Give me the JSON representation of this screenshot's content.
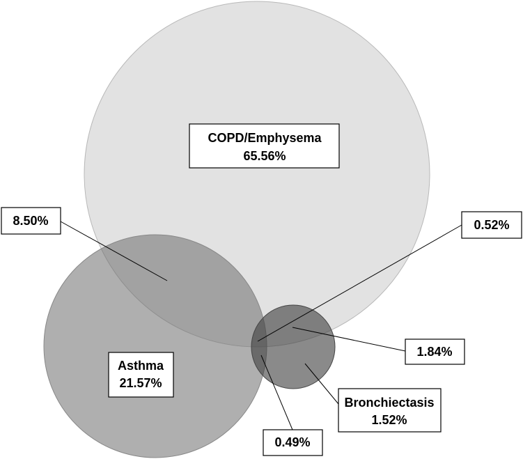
{
  "sets": [
    {
      "name": "COPD/Emphysema",
      "label": "65.56%"
    },
    {
      "name": "Asthma",
      "label": "21.57%"
    },
    {
      "name": "Bronchiectasis",
      "label": "1.52%"
    }
  ],
  "overlaps": [
    {
      "label": "8.50%"
    },
    {
      "label": "0.52%"
    },
    {
      "label": "1.84%"
    },
    {
      "label": "0.49%"
    }
  ]
}
